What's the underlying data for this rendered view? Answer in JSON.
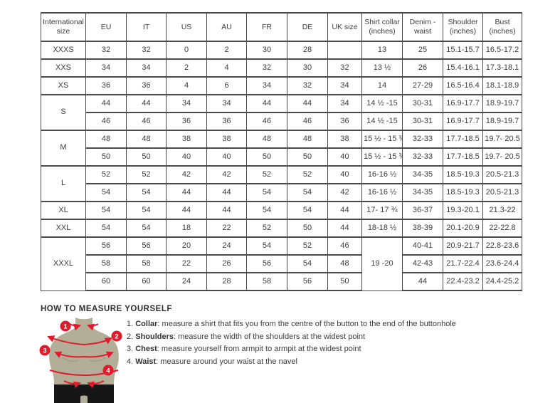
{
  "size_chart": {
    "columns": [
      {
        "key": "international-size",
        "label": "International size"
      },
      {
        "key": "eu",
        "label": "EU"
      },
      {
        "key": "it",
        "label": "IT"
      },
      {
        "key": "us",
        "label": "US"
      },
      {
        "key": "au",
        "label": "AU"
      },
      {
        "key": "fr",
        "label": "FR"
      },
      {
        "key": "de",
        "label": "DE"
      },
      {
        "key": "uk-size",
        "label": "UK size"
      },
      {
        "key": "shirt-collar",
        "label": "Shirt collar (inches)"
      },
      {
        "key": "denim-waist",
        "label": "Denim - waist"
      },
      {
        "key": "shoulder",
        "label": "Shoulder (inches)"
      },
      {
        "key": "bust",
        "label": "Bust (inches)"
      }
    ],
    "groups": [
      {
        "label": "XXXS",
        "rows": [
          [
            "32",
            "32",
            "0",
            "2",
            "30",
            "28",
            "",
            "13",
            "25",
            "15.1-15.7",
            "16.5-17.2"
          ]
        ]
      },
      {
        "label": "XXS",
        "rows": [
          [
            "34",
            "34",
            "2",
            "4",
            "32",
            "30",
            "32",
            "13 ½",
            "26",
            "15.4-16.1",
            "17.3-18.1"
          ]
        ]
      },
      {
        "label": "XS",
        "rows": [
          [
            "36",
            "36",
            "4",
            "6",
            "34",
            "32",
            "34",
            "14",
            "27-29",
            "16.5-16.4",
            "18.1-18.9"
          ]
        ]
      },
      {
        "label": "S",
        "rows": [
          [
            "44",
            "44",
            "34",
            "34",
            "44",
            "44",
            "34",
            "14 ½ -15",
            "30-31",
            "16.9-17.7",
            "18.9-19.7"
          ],
          [
            "46",
            "46",
            "36",
            "36",
            "46",
            "46",
            "36",
            "14 ½ -15",
            "30-31",
            "16.9-17.7",
            "18.9-19.7"
          ]
        ]
      },
      {
        "label": "M",
        "rows": [
          [
            "48",
            "48",
            "38",
            "38",
            "48",
            "48",
            "38",
            "15 ½ - 15 ¾",
            "32-33",
            "17.7-18.5",
            "19.7- 20.5"
          ],
          [
            "50",
            "50",
            "40",
            "40",
            "50",
            "50",
            "40",
            "15 ½ - 15 ¾",
            "32-33",
            "17.7-18.5",
            "19.7- 20.5"
          ]
        ]
      },
      {
        "label": "L",
        "rows": [
          [
            "52",
            "52",
            "42",
            "42",
            "52",
            "52",
            "40",
            "16-16 ½",
            "34-35",
            "18.5-19.3",
            "20.5-21.3"
          ],
          [
            "54",
            "54",
            "44",
            "44",
            "54",
            "54",
            "42",
            "16-16 ½",
            "34-35",
            "18.5-19.3",
            "20.5-21.3"
          ]
        ]
      },
      {
        "label": "XL",
        "rows": [
          [
            "54",
            "54",
            "44",
            "44",
            "54",
            "54",
            "44",
            "17- 17 ¾",
            "36-37",
            "19.3-20.1",
            "21.3-22"
          ]
        ]
      },
      {
        "label": "XXL",
        "rows": [
          [
            "54",
            "54",
            "18",
            "22",
            "52",
            "50",
            "44",
            "18-18 ½",
            "38-39",
            "20.1-20.9",
            "22-22.8"
          ]
        ]
      },
      {
        "label": "XXXL",
        "merged_collar": "19 -20",
        "rows": [
          [
            "56",
            "56",
            "20",
            "24",
            "54",
            "52",
            "46",
            "40-41",
            "20.9-21.7",
            "22.8-23.6"
          ],
          [
            "58",
            "58",
            "22",
            "26",
            "56",
            "54",
            "48",
            "42-43",
            "21.7-22.4",
            "23.6-24.4"
          ],
          [
            "60",
            "60",
            "24",
            "28",
            "58",
            "56",
            "50",
            "44",
            "22.4-23.2",
            "24.4-25.2"
          ]
        ]
      }
    ]
  },
  "measure": {
    "title": "HOW TO MEASURE YOURSELF",
    "badges": [
      "1",
      "2",
      "3",
      "4"
    ],
    "steps": [
      {
        "num": "1.",
        "term": "Collar",
        "rest": ": measure a shirt that fits you from the centre of the button to the end of the buttonhole"
      },
      {
        "num": "2.",
        "term": "Shoulders",
        "rest": ": measure the width of the shoulders at the widest point"
      },
      {
        "num": "3.",
        "term": "Chest",
        "rest": ": measure yourself from armpit to armpit at the widest point"
      },
      {
        "num": "4.",
        "term": "Waist",
        "rest": ": measure around your waist at the navel"
      }
    ]
  },
  "colors": {
    "accent_red": "#e11b2b",
    "torso_tan": "#b3ae97",
    "shorts_black": "#161616",
    "border_gray": "#4a4a4a"
  }
}
